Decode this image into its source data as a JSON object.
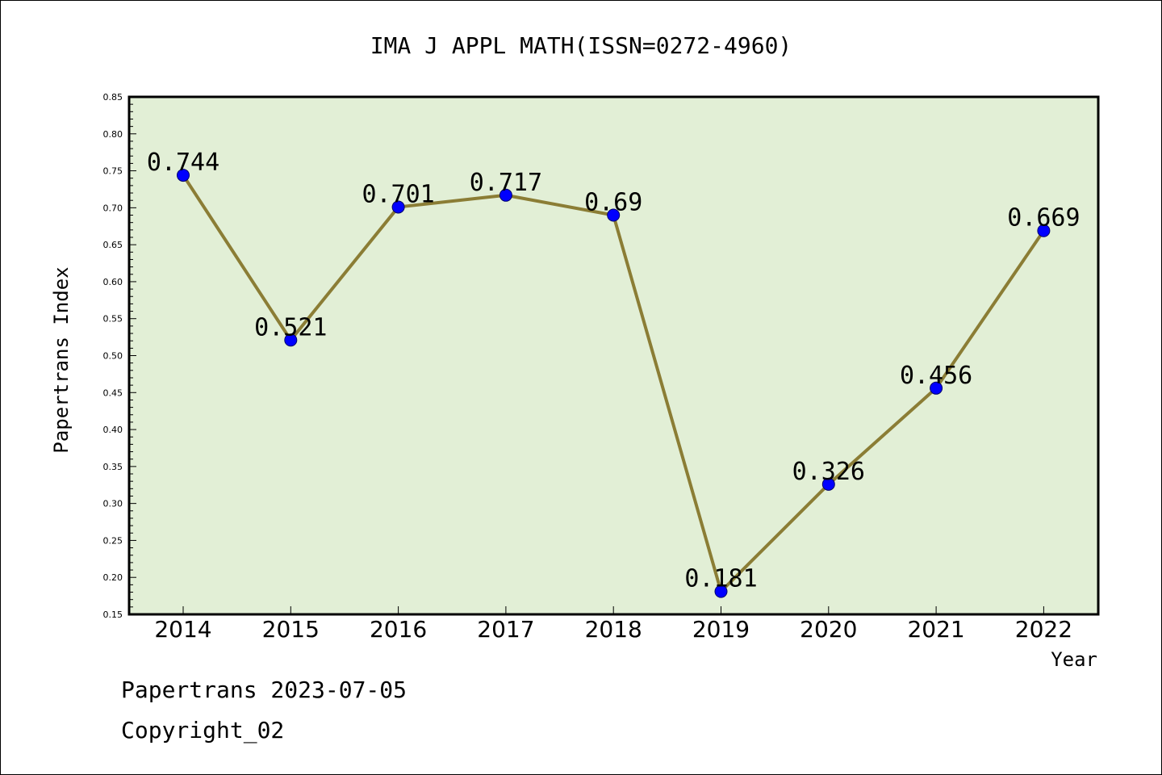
{
  "chart_data": {
    "type": "line",
    "title": "IMA J APPL MATH(ISSN=0272-4960)",
    "xlabel": "Year",
    "ylabel": "Papertrans Index",
    "categories": [
      "2014",
      "2015",
      "2016",
      "2017",
      "2018",
      "2019",
      "2020",
      "2021",
      "2022"
    ],
    "values": [
      0.744,
      0.521,
      0.701,
      0.717,
      0.69,
      0.181,
      0.326,
      0.456,
      0.669
    ],
    "data_labels": [
      "0.744",
      "0.521",
      "0.701",
      "0.717",
      "0.69",
      "0.181",
      "0.326",
      "0.456",
      "0.669"
    ],
    "ylim": [
      0.15,
      0.85
    ],
    "yticks": [
      "0.15",
      "0.20",
      "0.25",
      "0.30",
      "0.35",
      "0.40",
      "0.45",
      "0.50",
      "0.55",
      "0.60",
      "0.65",
      "0.70",
      "0.75",
      "0.80",
      "0.85"
    ],
    "grid": false,
    "legend": "none",
    "colors": {
      "plot_background": "#e2efd6",
      "line": "#8b7d35",
      "marker": "#0000ff"
    }
  },
  "footer": {
    "line1": "Papertrans 2023-07-05",
    "line2": "Copyright_02"
  }
}
